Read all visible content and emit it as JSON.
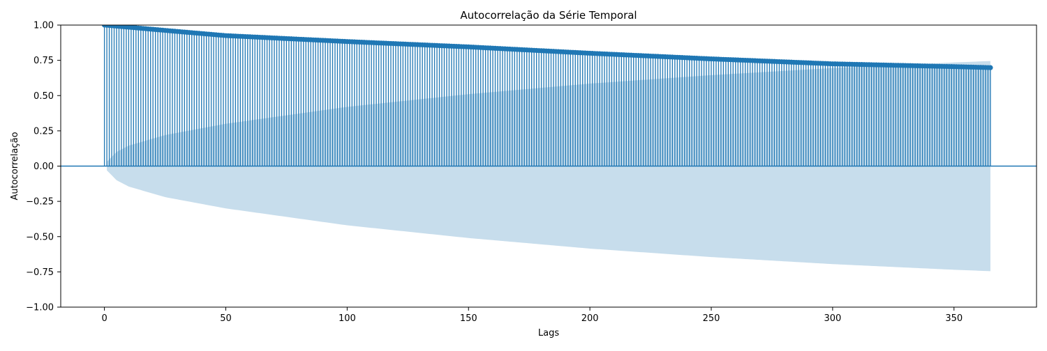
{
  "chart_data": {
    "type": "stem",
    "title": "Autocorrelação da Série Temporal",
    "xlabel": "Lags",
    "ylabel": "Autocorrelação",
    "xlim": [
      -18,
      384
    ],
    "ylim": [
      -1.0,
      1.0
    ],
    "xticks": [
      0,
      50,
      100,
      150,
      200,
      250,
      300,
      350
    ],
    "xtick_labels": [
      "0",
      "50",
      "100",
      "150",
      "200",
      "250",
      "300",
      "350"
    ],
    "yticks": [
      -1.0,
      -0.75,
      -0.5,
      -0.25,
      0.0,
      0.25,
      0.5,
      0.75,
      1.0
    ],
    "ytick_labels": [
      "−1.00",
      "−0.75",
      "−0.50",
      "−0.25",
      "0.00",
      "0.25",
      "0.50",
      "0.75",
      "1.00"
    ],
    "lags": {
      "start": 0,
      "end": 365
    },
    "acf_anchors": {
      "x": [
        0,
        25,
        50,
        100,
        150,
        200,
        250,
        300,
        350,
        365
      ],
      "y": [
        1.0,
        0.962,
        0.925,
        0.883,
        0.845,
        0.8,
        0.76,
        0.725,
        0.705,
        0.698
      ]
    },
    "confidence_band_anchors": {
      "x": [
        1,
        5,
        10,
        25,
        50,
        100,
        150,
        200,
        250,
        300,
        350,
        365
      ],
      "half_width": [
        0.03,
        0.1,
        0.145,
        0.22,
        0.3,
        0.42,
        0.51,
        0.585,
        0.645,
        0.695,
        0.735,
        0.745
      ]
    },
    "grid": false,
    "legend": false,
    "colors": {
      "stem": "#1f77b4",
      "marker": "#1f77b4",
      "band": "#1f77b4",
      "zero_line": "#1f77b4"
    }
  }
}
